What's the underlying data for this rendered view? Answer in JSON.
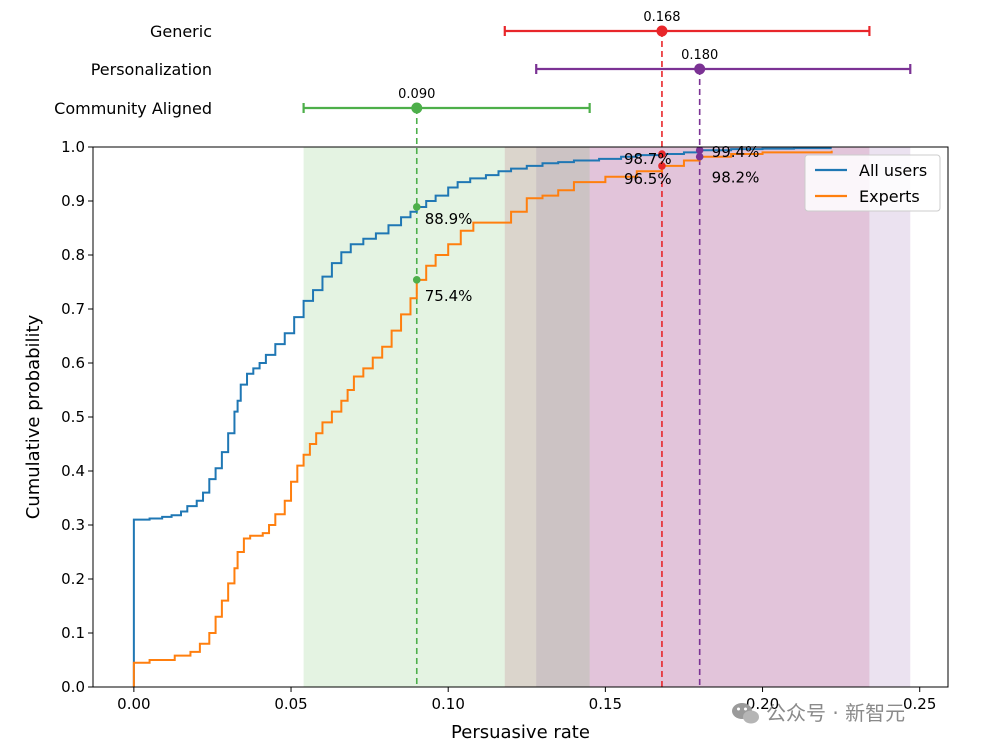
{
  "chart_data": {
    "type": "line",
    "xlabel": "Persuasive rate",
    "ylabel": "Cumulative probability",
    "xlim": [
      -0.013,
      0.259
    ],
    "ylim": [
      0.0,
      1.0
    ],
    "x_ticks": [
      "0.00",
      "0.05",
      "0.10",
      "0.15",
      "0.20",
      "0.25"
    ],
    "x_tick_values": [
      0.0,
      0.05,
      0.1,
      0.15,
      0.2,
      0.25
    ],
    "y_ticks": [
      "0.0",
      "0.1",
      "0.2",
      "0.3",
      "0.4",
      "0.5",
      "0.6",
      "0.7",
      "0.8",
      "0.9",
      "1.0"
    ],
    "y_tick_values": [
      0.0,
      0.1,
      0.2,
      0.3,
      0.4,
      0.5,
      0.6,
      0.7,
      0.8,
      0.9,
      1.0
    ],
    "legend": {
      "position": "top-right"
    },
    "series": [
      {
        "name": "All users",
        "color": "#1f77b4",
        "points": [
          [
            0.0,
            0.0
          ],
          [
            0.0,
            0.31
          ],
          [
            0.005,
            0.312
          ],
          [
            0.009,
            0.315
          ],
          [
            0.012,
            0.318
          ],
          [
            0.015,
            0.325
          ],
          [
            0.017,
            0.335
          ],
          [
            0.02,
            0.345
          ],
          [
            0.022,
            0.36
          ],
          [
            0.024,
            0.385
          ],
          [
            0.026,
            0.405
          ],
          [
            0.028,
            0.435
          ],
          [
            0.03,
            0.47
          ],
          [
            0.032,
            0.51
          ],
          [
            0.033,
            0.53
          ],
          [
            0.034,
            0.56
          ],
          [
            0.036,
            0.58
          ],
          [
            0.038,
            0.59
          ],
          [
            0.04,
            0.6
          ],
          [
            0.042,
            0.615
          ],
          [
            0.045,
            0.635
          ],
          [
            0.048,
            0.655
          ],
          [
            0.051,
            0.685
          ],
          [
            0.054,
            0.715
          ],
          [
            0.057,
            0.735
          ],
          [
            0.06,
            0.76
          ],
          [
            0.063,
            0.785
          ],
          [
            0.066,
            0.805
          ],
          [
            0.069,
            0.82
          ],
          [
            0.073,
            0.83
          ],
          [
            0.077,
            0.84
          ],
          [
            0.081,
            0.855
          ],
          [
            0.085,
            0.87
          ],
          [
            0.088,
            0.88
          ],
          [
            0.09,
            0.889
          ],
          [
            0.093,
            0.9
          ],
          [
            0.096,
            0.91
          ],
          [
            0.1,
            0.925
          ],
          [
            0.103,
            0.935
          ],
          [
            0.107,
            0.942
          ],
          [
            0.112,
            0.948
          ],
          [
            0.116,
            0.955
          ],
          [
            0.12,
            0.96
          ],
          [
            0.125,
            0.965
          ],
          [
            0.13,
            0.97
          ],
          [
            0.135,
            0.972
          ],
          [
            0.14,
            0.975
          ],
          [
            0.148,
            0.978
          ],
          [
            0.155,
            0.982
          ],
          [
            0.16,
            0.985
          ],
          [
            0.168,
            0.987
          ],
          [
            0.175,
            0.99
          ],
          [
            0.18,
            0.994
          ],
          [
            0.19,
            0.996
          ],
          [
            0.2,
            0.997
          ],
          [
            0.21,
            0.998
          ],
          [
            0.222,
            0.998
          ]
        ]
      },
      {
        "name": "Experts",
        "color": "#ff7f0e",
        "points": [
          [
            0.0,
            0.0
          ],
          [
            0.0,
            0.045
          ],
          [
            0.005,
            0.05
          ],
          [
            0.013,
            0.058
          ],
          [
            0.018,
            0.065
          ],
          [
            0.021,
            0.08
          ],
          [
            0.024,
            0.1
          ],
          [
            0.026,
            0.13
          ],
          [
            0.028,
            0.16
          ],
          [
            0.03,
            0.192
          ],
          [
            0.032,
            0.22
          ],
          [
            0.033,
            0.25
          ],
          [
            0.035,
            0.275
          ],
          [
            0.037,
            0.28
          ],
          [
            0.041,
            0.285
          ],
          [
            0.043,
            0.3
          ],
          [
            0.045,
            0.32
          ],
          [
            0.048,
            0.345
          ],
          [
            0.05,
            0.38
          ],
          [
            0.052,
            0.41
          ],
          [
            0.054,
            0.43
          ],
          [
            0.056,
            0.45
          ],
          [
            0.058,
            0.47
          ],
          [
            0.06,
            0.49
          ],
          [
            0.063,
            0.51
          ],
          [
            0.066,
            0.53
          ],
          [
            0.068,
            0.55
          ],
          [
            0.07,
            0.575
          ],
          [
            0.073,
            0.59
          ],
          [
            0.076,
            0.61
          ],
          [
            0.079,
            0.63
          ],
          [
            0.082,
            0.66
          ],
          [
            0.085,
            0.69
          ],
          [
            0.088,
            0.72
          ],
          [
            0.09,
            0.754
          ],
          [
            0.093,
            0.78
          ],
          [
            0.096,
            0.8
          ],
          [
            0.1,
            0.82
          ],
          [
            0.104,
            0.845
          ],
          [
            0.108,
            0.86
          ],
          [
            0.114,
            0.86
          ],
          [
            0.117,
            0.86
          ],
          [
            0.12,
            0.88
          ],
          [
            0.125,
            0.905
          ],
          [
            0.13,
            0.91
          ],
          [
            0.135,
            0.92
          ],
          [
            0.14,
            0.935
          ],
          [
            0.15,
            0.945
          ],
          [
            0.16,
            0.955
          ],
          [
            0.168,
            0.965
          ],
          [
            0.175,
            0.975
          ],
          [
            0.18,
            0.982
          ],
          [
            0.19,
            0.987
          ],
          [
            0.2,
            0.99
          ],
          [
            0.222,
            0.993
          ]
        ]
      }
    ],
    "rows": [
      {
        "label": "Generic",
        "value": 0.168,
        "value_label": "0.168",
        "ci": [
          0.118,
          0.234
        ],
        "color": "#e8262a",
        "shade_color": "#c9457a"
      },
      {
        "label": "Personalization",
        "value": 0.18,
        "value_label": "0.180",
        "ci": [
          0.128,
          0.247
        ],
        "color": "#7b3294",
        "shade_color": "#9b6fb5"
      },
      {
        "label": "Community Aligned",
        "value": 0.09,
        "value_label": "0.090",
        "ci": [
          0.054,
          0.145
        ],
        "color": "#4daf4a",
        "shade_color": "#78c26d"
      }
    ],
    "crossing_labels": [
      {
        "x": 0.09,
        "y": 0.889,
        "text": "88.9%",
        "color": "#4daf4a"
      },
      {
        "x": 0.09,
        "y": 0.754,
        "text": "75.4%",
        "color": "#4daf4a"
      },
      {
        "x": 0.168,
        "y": 0.987,
        "text": "98.7%",
        "color": "#e8262a"
      },
      {
        "x": 0.168,
        "y": 0.965,
        "text": "96.5%",
        "color": "#e8262a"
      },
      {
        "x": 0.18,
        "y": 0.994,
        "text": "99.4%",
        "color": "#7b3294"
      },
      {
        "x": 0.18,
        "y": 0.982,
        "text": "98.2%",
        "color": "#7b3294"
      }
    ]
  },
  "watermark": {
    "text": "公众号 · 新智元",
    "icon": "wechat-icon"
  }
}
